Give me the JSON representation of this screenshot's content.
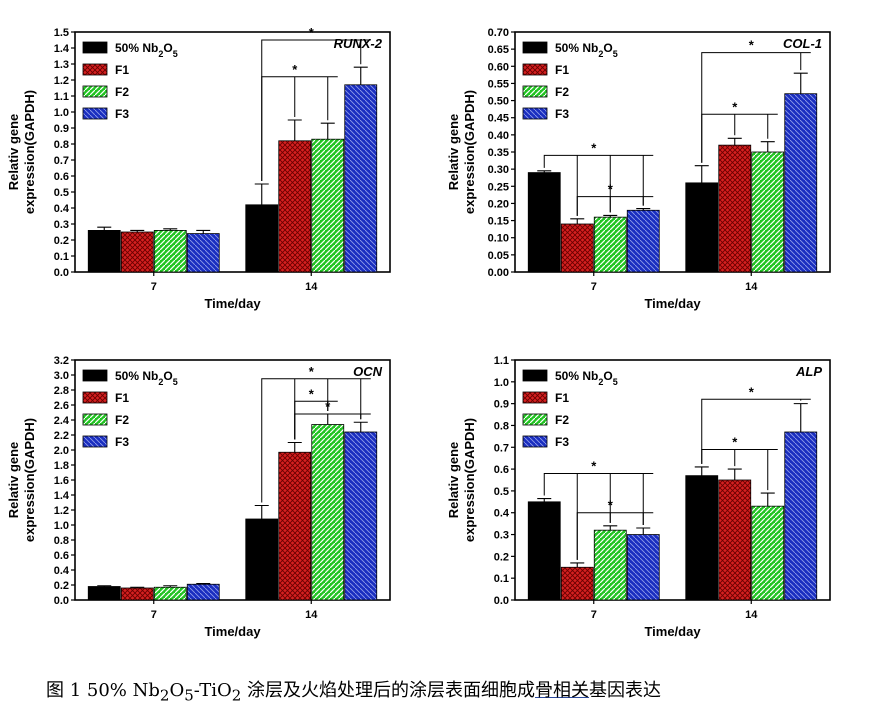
{
  "colors": {
    "series": [
      "#000000",
      "#d62020",
      "#22c422",
      "#1a2ec0"
    ],
    "hatch_line": "#ffffff"
  },
  "caption": {
    "parts": [
      {
        "t": "图 1 50% Nb"
      },
      {
        "t": "2",
        "sub": true
      },
      {
        "t": "O"
      },
      {
        "t": "5",
        "sub": true
      },
      {
        "t": "-TiO"
      },
      {
        "t": "2",
        "sub": true
      },
      {
        "t": " 涂层及火焰处理后的涂层表面细胞成"
      },
      {
        "t": "骨相关",
        "underline": true
      },
      {
        "t": "基因表达"
      }
    ]
  },
  "chart_data": [
    {
      "type": "bar",
      "gene_label": "RUNX-2",
      "xlabel": "Time/day",
      "ylabel_lines": [
        "Relativ gene",
        "expression(GAPDH)"
      ],
      "categories": [
        "7",
        "14"
      ],
      "ylim": [
        0,
        1.5
      ],
      "yticks": [
        "0.0",
        "0.1",
        "0.2",
        "0.3",
        "0.4",
        "0.5",
        "0.6",
        "0.7",
        "0.8",
        "0.9",
        "1.0",
        "1.1",
        "1.2",
        "1.3",
        "1.4",
        "1.5"
      ],
      "legend": [
        {
          "main": "50% Nb",
          "s1": "2",
          "mid": "O",
          "s2": "5"
        },
        {
          "main": "F1"
        },
        {
          "main": "F2"
        },
        {
          "main": "F3"
        }
      ],
      "series": [
        {
          "values": [
            0.26,
            0.42
          ],
          "errors": [
            0.02,
            0.13
          ]
        },
        {
          "values": [
            0.25,
            0.82
          ],
          "errors": [
            0.01,
            0.13
          ]
        },
        {
          "values": [
            0.26,
            0.83
          ],
          "errors": [
            0.01,
            0.1
          ]
        },
        {
          "values": [
            0.24,
            1.17
          ],
          "errors": [
            0.02,
            0.11
          ]
        }
      ],
      "significance": [
        {
          "group": 1,
          "from": 0,
          "to": [
            1,
            2
          ],
          "level": 1.22,
          "mark": "*"
        },
        {
          "group": 1,
          "from": 0,
          "to": [
            3
          ],
          "level": 1.45,
          "mark": "*"
        }
      ]
    },
    {
      "type": "bar",
      "gene_label": "COL-1",
      "xlabel": "Time/day",
      "ylabel_lines": [
        "Relativ gene",
        "expression(GAPDH)"
      ],
      "categories": [
        "7",
        "14"
      ],
      "ylim": [
        0,
        0.7
      ],
      "yticks": [
        "0.00",
        "0.05",
        "0.10",
        "0.15",
        "0.20",
        "0.25",
        "0.30",
        "0.35",
        "0.40",
        "0.45",
        "0.50",
        "0.55",
        "0.60",
        "0.65",
        "0.70"
      ],
      "legend": [
        {
          "main": "50% Nb",
          "s1": "2",
          "mid": "O",
          "s2": "5"
        },
        {
          "main": "F1"
        },
        {
          "main": "F2"
        },
        {
          "main": "F3"
        }
      ],
      "series": [
        {
          "values": [
            0.29,
            0.26
          ],
          "errors": [
            0.005,
            0.05
          ]
        },
        {
          "values": [
            0.14,
            0.37
          ],
          "errors": [
            0.015,
            0.02
          ]
        },
        {
          "values": [
            0.16,
            0.35
          ],
          "errors": [
            0.005,
            0.03
          ]
        },
        {
          "values": [
            0.18,
            0.52
          ],
          "errors": [
            0.005,
            0.06
          ]
        }
      ],
      "significance": [
        {
          "group": 0,
          "from": 0,
          "to": [
            1,
            2,
            3
          ],
          "level": 0.34,
          "mark": "*"
        },
        {
          "group": 0,
          "from": 1,
          "to": [
            2,
            3
          ],
          "level": 0.22,
          "mark": "*"
        },
        {
          "group": 1,
          "from": 0,
          "to": [
            1,
            2
          ],
          "level": 0.46,
          "mark": "*"
        },
        {
          "group": 1,
          "from": 0,
          "to": [
            3
          ],
          "level": 0.64,
          "mark": "*"
        }
      ]
    },
    {
      "type": "bar",
      "gene_label": "OCN",
      "xlabel": "Time/day",
      "ylabel_lines": [
        "Relativ gene",
        "expression(GAPDH)"
      ],
      "categories": [
        "7",
        "14"
      ],
      "ylim": [
        0,
        3.2
      ],
      "yticks": [
        "0.0",
        "0.2",
        "0.4",
        "0.6",
        "0.8",
        "1.0",
        "1.2",
        "1.4",
        "1.6",
        "1.8",
        "2.0",
        "2.2",
        "2.4",
        "2.6",
        "2.8",
        "3.0",
        "3.2"
      ],
      "legend": [
        {
          "main": "50% Nb",
          "s1": "2",
          "mid": "O",
          "s2": "5"
        },
        {
          "main": "F1"
        },
        {
          "main": "F2"
        },
        {
          "main": "F3"
        }
      ],
      "series": [
        {
          "values": [
            0.18,
            1.08
          ],
          "errors": [
            0.01,
            0.18
          ]
        },
        {
          "values": [
            0.16,
            1.97
          ],
          "errors": [
            0.01,
            0.13
          ]
        },
        {
          "values": [
            0.17,
            2.34
          ],
          "errors": [
            0.02,
            0.14
          ]
        },
        {
          "values": [
            0.21,
            2.24
          ],
          "errors": [
            0.01,
            0.13
          ]
        }
      ],
      "significance": [
        {
          "group": 1,
          "from": 0,
          "to": [
            1,
            2,
            3
          ],
          "level": 2.95,
          "mark": "*"
        },
        {
          "group": 1,
          "from": 1,
          "to": [
            2
          ],
          "level": 2.65,
          "mark": "*"
        },
        {
          "group": 1,
          "from": 1,
          "to": [
            3
          ],
          "level": 2.48,
          "mark": "*"
        }
      ]
    },
    {
      "type": "bar",
      "gene_label": "ALP",
      "xlabel": "Time/day",
      "ylabel_lines": [
        "Relativ gene",
        "expression(GAPDH)"
      ],
      "categories": [
        "7",
        "14"
      ],
      "ylim": [
        0,
        1.1
      ],
      "yticks": [
        "0.0",
        "0.1",
        "0.2",
        "0.3",
        "0.4",
        "0.5",
        "0.6",
        "0.7",
        "0.8",
        "0.9",
        "1.0",
        "1.1"
      ],
      "legend": [
        {
          "main": "50% Nb",
          "s1": "2",
          "mid": "O",
          "s2": "5"
        },
        {
          "main": "F1"
        },
        {
          "main": "F2"
        },
        {
          "main": "F3"
        }
      ],
      "series": [
        {
          "values": [
            0.45,
            0.57
          ],
          "errors": [
            0.015,
            0.04
          ]
        },
        {
          "values": [
            0.15,
            0.55
          ],
          "errors": [
            0.02,
            0.05
          ]
        },
        {
          "values": [
            0.32,
            0.43
          ],
          "errors": [
            0.02,
            0.06
          ]
        },
        {
          "values": [
            0.3,
            0.77
          ],
          "errors": [
            0.03,
            0.13
          ]
        }
      ],
      "significance": [
        {
          "group": 0,
          "from": 0,
          "to": [
            1,
            2,
            3
          ],
          "level": 0.58,
          "mark": "*"
        },
        {
          "group": 0,
          "from": 1,
          "to": [
            2,
            3
          ],
          "level": 0.4,
          "mark": "*"
        },
        {
          "group": 1,
          "from": 0,
          "to": [
            1,
            2
          ],
          "level": 0.69,
          "mark": "*"
        },
        {
          "group": 1,
          "from": 0,
          "to": [
            3
          ],
          "level": 0.92,
          "mark": "*"
        }
      ]
    }
  ]
}
